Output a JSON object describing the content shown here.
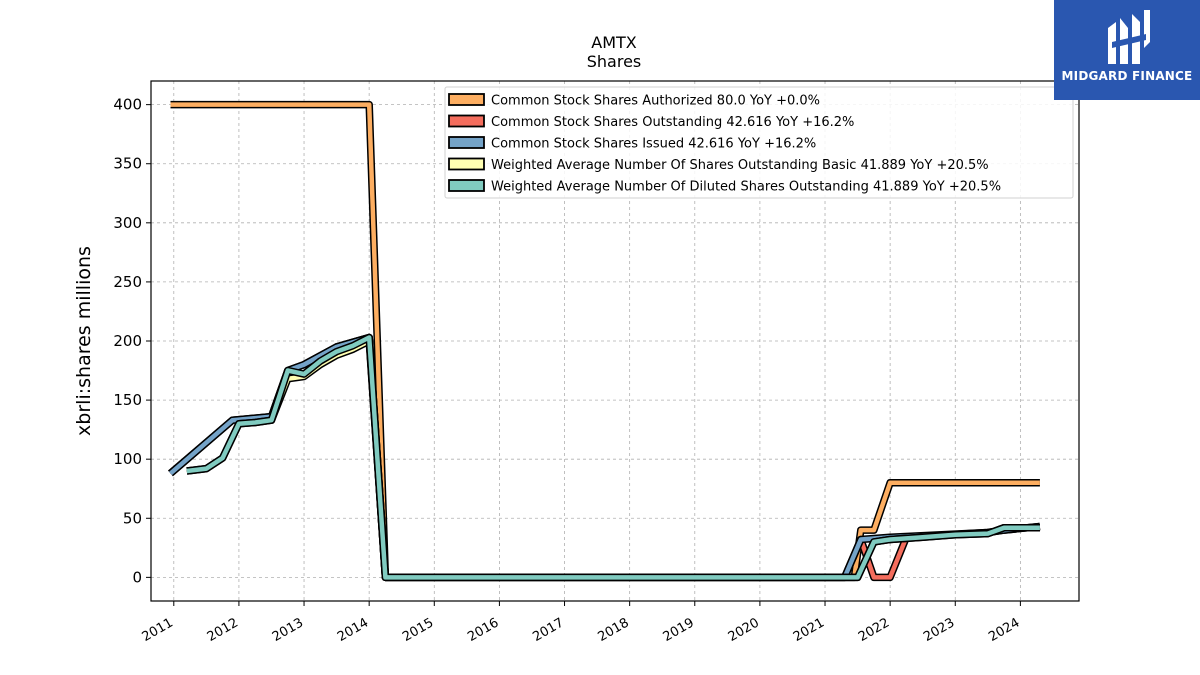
{
  "chart_data": {
    "type": "line",
    "title": "AMTX",
    "subtitle": "Shares",
    "ylabel": "xbrli:shares millions",
    "xlabel": "",
    "xlim": [
      2010.65,
      2024.9
    ],
    "ylim": [
      -20,
      420
    ],
    "yticks": [
      0,
      50,
      100,
      150,
      200,
      250,
      300,
      350,
      400
    ],
    "xticks": [
      "2011",
      "2012",
      "2013",
      "2014",
      "2015",
      "2016",
      "2017",
      "2018",
      "2019",
      "2020",
      "2021",
      "2022",
      "2023",
      "2024"
    ],
    "grid": true,
    "legend_position": "top-right",
    "series": [
      {
        "name": "Common Stock Shares Authorized  80.0 YoY +0.0%",
        "color": "#fdae61",
        "points": [
          [
            2010.95,
            400
          ],
          [
            2014.0,
            400
          ],
          [
            2014.25,
            0
          ],
          [
            2021.45,
            0
          ],
          [
            2021.55,
            40
          ],
          [
            2021.75,
            40
          ],
          [
            2022.0,
            80
          ],
          [
            2024.3,
            80
          ]
        ]
      },
      {
        "name": "Common Stock Shares Outstanding  42.616 YoY +16.2%",
        "color": "#f46d5d",
        "points": [
          [
            2010.95,
            88
          ],
          [
            2011.9,
            133
          ],
          [
            2012.5,
            136
          ],
          [
            2012.75,
            175
          ],
          [
            2013.0,
            180
          ],
          [
            2013.5,
            195
          ],
          [
            2014.0,
            203
          ],
          [
            2014.25,
            0
          ],
          [
            2021.3,
            0
          ],
          [
            2021.55,
            32
          ],
          [
            2021.75,
            0
          ],
          [
            2022.0,
            0
          ],
          [
            2022.25,
            34
          ],
          [
            2023.5,
            38
          ],
          [
            2023.75,
            40
          ],
          [
            2024.3,
            43
          ]
        ]
      },
      {
        "name": "Common Stock Shares Issued  42.616 YoY +16.2%",
        "color": "#74a3c8",
        "points": [
          [
            2010.95,
            88
          ],
          [
            2011.9,
            133
          ],
          [
            2012.5,
            136
          ],
          [
            2012.75,
            175
          ],
          [
            2013.0,
            180
          ],
          [
            2013.5,
            195
          ],
          [
            2014.0,
            203
          ],
          [
            2014.25,
            0
          ],
          [
            2021.3,
            0
          ],
          [
            2021.55,
            32
          ],
          [
            2022.0,
            34
          ],
          [
            2023.5,
            38
          ],
          [
            2023.75,
            40
          ],
          [
            2024.3,
            43
          ]
        ]
      },
      {
        "name": "Weighted Average Number Of Shares Outstanding Basic  41.889 YoY +20.5%",
        "color": "#ffffb2",
        "points": [
          [
            2011.2,
            90
          ],
          [
            2011.5,
            92
          ],
          [
            2011.75,
            101
          ],
          [
            2012.0,
            130
          ],
          [
            2012.25,
            131
          ],
          [
            2012.5,
            133
          ],
          [
            2012.75,
            168
          ],
          [
            2013.0,
            170
          ],
          [
            2013.25,
            180
          ],
          [
            2013.5,
            188
          ],
          [
            2013.75,
            193
          ],
          [
            2014.0,
            200
          ],
          [
            2014.25,
            0
          ],
          [
            2021.5,
            0
          ],
          [
            2021.75,
            30
          ],
          [
            2022.0,
            32
          ],
          [
            2022.5,
            34
          ],
          [
            2023.0,
            36
          ],
          [
            2023.5,
            37
          ],
          [
            2023.75,
            42
          ],
          [
            2024.0,
            42
          ],
          [
            2024.3,
            42
          ]
        ]
      },
      {
        "name": "Weighted Average Number Of Diluted Shares Outstanding  41.889 YoY +20.5%",
        "color": "#80cbc0",
        "points": [
          [
            2011.2,
            90
          ],
          [
            2011.5,
            92
          ],
          [
            2011.75,
            101
          ],
          [
            2012.0,
            130
          ],
          [
            2012.25,
            131
          ],
          [
            2012.5,
            133
          ],
          [
            2012.75,
            175
          ],
          [
            2013.0,
            172
          ],
          [
            2013.25,
            183
          ],
          [
            2013.5,
            191
          ],
          [
            2013.75,
            196
          ],
          [
            2014.0,
            203
          ],
          [
            2014.25,
            0
          ],
          [
            2021.5,
            0
          ],
          [
            2021.75,
            30
          ],
          [
            2022.0,
            32
          ],
          [
            2022.5,
            34
          ],
          [
            2023.0,
            36
          ],
          [
            2023.5,
            37
          ],
          [
            2023.75,
            42
          ],
          [
            2024.0,
            42
          ],
          [
            2024.3,
            42
          ]
        ]
      }
    ]
  },
  "logo": {
    "text": "MIDGARD FINANCE",
    "mark": "MF monogram"
  }
}
